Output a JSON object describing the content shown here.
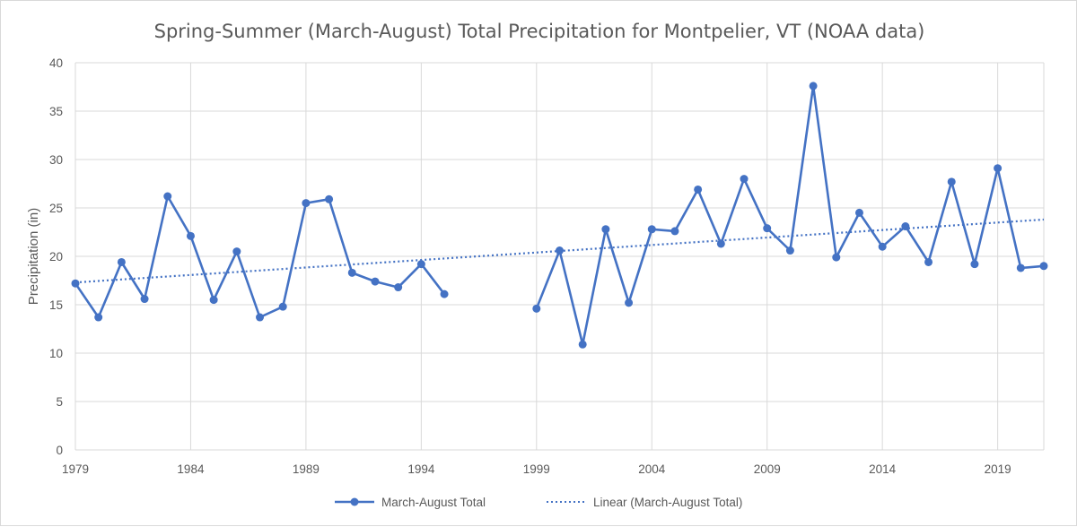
{
  "chart_data": {
    "type": "line",
    "title": "Spring-Summer (March-August) Total Precipitation for Montpelier, VT (NOAA data)",
    "xlabel": "",
    "ylabel": "Precipitation (in)",
    "xlim": [
      1979,
      2021
    ],
    "ylim": [
      0,
      40
    ],
    "x_ticks": [
      "1979",
      "1984",
      "1989",
      "1994",
      "1999",
      "2004",
      "2009",
      "2014",
      "2019"
    ],
    "y_ticks": [
      "0",
      "5",
      "10",
      "15",
      "20",
      "25",
      "30",
      "35",
      "40"
    ],
    "grid": "both",
    "legend_position": "bottom",
    "series": [
      {
        "name": "March-August Total",
        "color": "#4472c4",
        "x": [
          1979,
          1980,
          1981,
          1982,
          1983,
          1984,
          1985,
          1986,
          1987,
          1988,
          1989,
          1990,
          1991,
          1992,
          1993,
          1994,
          1995,
          1999,
          2000,
          2001,
          2002,
          2003,
          2004,
          2005,
          2006,
          2007,
          2008,
          2009,
          2010,
          2011,
          2012,
          2013,
          2014,
          2015,
          2016,
          2017,
          2018,
          2019,
          2020,
          2021
        ],
        "values": [
          17.2,
          13.7,
          19.4,
          15.6,
          26.2,
          22.1,
          15.5,
          20.5,
          13.7,
          14.8,
          25.5,
          25.9,
          18.3,
          17.4,
          16.8,
          19.2,
          16.1,
          14.6,
          20.6,
          10.9,
          22.8,
          15.2,
          22.8,
          22.6,
          26.9,
          21.3,
          28.0,
          22.9,
          20.6,
          37.6,
          19.9,
          24.5,
          21.0,
          23.1,
          19.4,
          27.7,
          19.2,
          29.1,
          18.8,
          19.0
        ]
      }
    ],
    "trendline": {
      "name": "Linear (March-August Total)",
      "color": "#4472c4",
      "style": "dotted",
      "x": [
        1979,
        2021
      ],
      "values": [
        17.3,
        23.8
      ]
    }
  }
}
